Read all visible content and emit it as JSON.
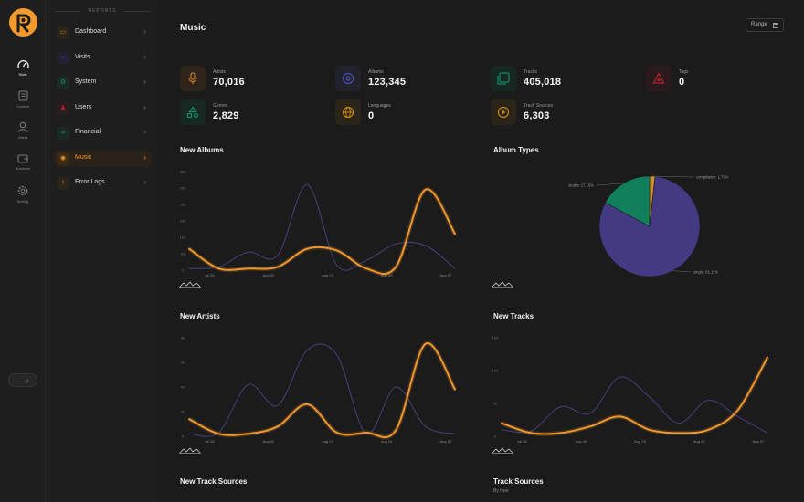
{
  "rail": {
    "items": [
      {
        "label": "Stats",
        "icon": "gauge-icon",
        "active": true
      },
      {
        "label": "Content",
        "icon": "document-icon",
        "active": false
      },
      {
        "label": "Users",
        "icon": "user-icon",
        "active": false
      },
      {
        "label": "Business",
        "icon": "wallet-icon",
        "active": false
      },
      {
        "label": "Setting",
        "icon": "gear-icon",
        "active": false
      }
    ]
  },
  "sidebar": {
    "title": "REPORTS",
    "items": [
      {
        "label": "Dashboard",
        "icon": "dashboard-icon",
        "color": "#c8860f",
        "bg": "#2a251a",
        "active": false
      },
      {
        "label": "Visits",
        "icon": "visits-icon",
        "color": "#4a4a9a",
        "bg": "#212131",
        "active": false
      },
      {
        "label": "System",
        "icon": "system-icon",
        "color": "#1f8c6b",
        "bg": "#1a2a24",
        "active": false
      },
      {
        "label": "Users",
        "icon": "users-icon",
        "color": "#b02531",
        "bg": "#2b1c1d",
        "active": false
      },
      {
        "label": "Financial",
        "icon": "financial-icon",
        "color": "#1f8c6b",
        "bg": "#1a2a24",
        "active": false
      },
      {
        "label": "Music",
        "icon": "music-icon",
        "color": "#f0962e",
        "bg": "#3a2a16",
        "active": true
      },
      {
        "label": "Error Logs",
        "icon": "error-icon",
        "color": "#c8860f",
        "bg": "#2a251a",
        "active": false
      }
    ]
  },
  "header": {
    "title": "Music",
    "range_label": "Range"
  },
  "stats": [
    {
      "label": "Artists",
      "value": "70,016",
      "icon": "microphone-icon",
      "color": "#c57a2a",
      "bg": "#2e2419"
    },
    {
      "label": "Albums",
      "value": "123,345",
      "icon": "disc-icon",
      "color": "#4d4fb3",
      "bg": "#22222c"
    },
    {
      "label": "Tracks",
      "value": "405,018",
      "icon": "tracks-icon",
      "color": "#178767",
      "bg": "#172823"
    },
    {
      "label": "Tags",
      "value": "0",
      "icon": "tag-icon",
      "color": "#b0202c",
      "bg": "#2b1a1c"
    },
    {
      "label": "Genres",
      "value": "2,829",
      "icon": "genres-icon",
      "color": "#178767",
      "bg": "#172823"
    },
    {
      "label": "Languages",
      "value": "0",
      "icon": "globe-icon",
      "color": "#c8860f",
      "bg": "#2b2519"
    },
    {
      "label": "Track Sources",
      "value": "6,303",
      "icon": "play-icon",
      "color": "#c8860f",
      "bg": "#2b2519"
    }
  ],
  "sections": {
    "new_albums": "New Albums",
    "album_types": "Album Types",
    "new_artists": "New Artists",
    "new_tracks": "New Tracks",
    "new_track_sources": "New Track Sources",
    "track_sources": "Track Sources",
    "track_sources_sub": "By type"
  },
  "colors": {
    "accent": "#f0962e",
    "secondary_line": "#43407d",
    "pie_purple": "#423a83",
    "pie_green": "#117f5c",
    "pie_orange": "#d19127"
  },
  "chart_data": [
    {
      "type": "line",
      "title": "New Albums",
      "x_ticks": [
        "Jul 28",
        "Aug 02",
        "Aug 03",
        "Aug 05",
        "Aug 07"
      ],
      "y_ticks": [
        0,
        50,
        100,
        150,
        200,
        250,
        300
      ],
      "ylim": [
        0,
        300
      ],
      "series": [
        {
          "role": "secondary",
          "values": [
            5,
            10,
            55,
            45,
            260,
            15,
            30,
            80,
            75,
            5
          ]
        },
        {
          "role": "primary",
          "values": [
            65,
            5,
            5,
            10,
            65,
            60,
            5,
            10,
            245,
            110
          ]
        }
      ]
    },
    {
      "type": "pie",
      "title": "Album Types",
      "slices": [
        {
          "label": "single",
          "value": 81.11,
          "display": "single: 81.11%"
        },
        {
          "label": "studio",
          "value": 17.16,
          "display": "studio: 17.16%"
        },
        {
          "label": "compilation",
          "value": 1.73,
          "display": "compilation: 1.73%"
        }
      ]
    },
    {
      "type": "line",
      "title": "New Artists",
      "x_ticks": [
        "Jul 28",
        "Aug 02",
        "Aug 03",
        "Aug 05",
        "Aug 07"
      ],
      "y_ticks": [
        0,
        20,
        40,
        60,
        80
      ],
      "ylim": [
        0,
        80
      ],
      "series": [
        {
          "role": "secondary",
          "values": [
            2,
            3,
            42,
            25,
            70,
            66,
            2,
            40,
            8,
            2
          ]
        },
        {
          "role": "primary",
          "values": [
            14,
            2,
            2,
            8,
            26,
            3,
            3,
            5,
            75,
            38
          ]
        }
      ]
    },
    {
      "type": "line",
      "title": "New Tracks",
      "x_ticks": [
        "Jul 28",
        "Aug 02",
        "Aug 03",
        "Aug 05",
        "Aug 07"
      ],
      "y_ticks": [
        0,
        50,
        100,
        150
      ],
      "ylim": [
        0,
        150
      ],
      "series": [
        {
          "role": "secondary",
          "values": [
            10,
            8,
            45,
            35,
            90,
            60,
            20,
            55,
            30,
            5
          ]
        },
        {
          "role": "primary",
          "values": [
            20,
            5,
            5,
            15,
            30,
            10,
            5,
            10,
            40,
            120
          ]
        }
      ]
    }
  ]
}
